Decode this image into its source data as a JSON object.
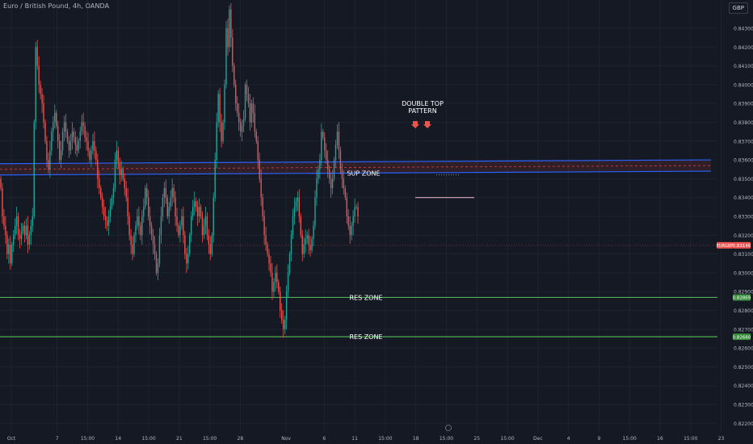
{
  "header": {
    "symbol_title": "Euro / British Pound, 4h, OANDA",
    "currency": "GBP"
  },
  "colors": {
    "background": "#151924",
    "grid": "#1f2330",
    "up": "#26a69a",
    "down": "#ef5350",
    "sup_band": "#2962ff",
    "res_line": "#4caf50",
    "text": "#b2b5be",
    "annotation": "#ffffff"
  },
  "chart_data": {
    "type": "candlestick",
    "ylim": [
      0.8215,
      0.8445
    ],
    "y_ticks": [
      "0.84300",
      "0.84200",
      "0.84100",
      "0.84000",
      "0.83900",
      "0.83800",
      "0.83700",
      "0.83600",
      "0.83500",
      "0.83400",
      "0.83300",
      "0.83200",
      "0.83100",
      "0.83000",
      "0.82900",
      "0.82800",
      "0.82700",
      "0.82600",
      "0.82500",
      "0.82400",
      "0.82300",
      "0.82200"
    ],
    "x_ticks": [
      "Oct",
      "7",
      "15:00",
      "14",
      "15:00",
      "21",
      "15:00",
      "28",
      "Nov",
      "6",
      "11",
      "15:00",
      "18",
      "15:00",
      "25",
      "15:00",
      "Dec",
      "4",
      "9",
      "15:00",
      "16",
      "15:00",
      "23"
    ],
    "x_tick_positions_bars": [
      0,
      30,
      50,
      70,
      90,
      110,
      130,
      150,
      180,
      205,
      225,
      245,
      265,
      285,
      305,
      325,
      345,
      365,
      385,
      405,
      425,
      445,
      465
    ],
    "total_bars": 470,
    "price_series_close": [
      0.8345,
      0.833,
      0.8325,
      0.832,
      0.831,
      0.8315,
      0.8305,
      0.8315,
      0.832,
      0.8325,
      0.833,
      0.832,
      0.8318,
      0.8322,
      0.8325,
      0.832,
      0.8325,
      0.8315,
      0.832,
      0.8325,
      0.833,
      0.838,
      0.842,
      0.841,
      0.84,
      0.8395,
      0.839,
      0.838,
      0.837,
      0.836,
      0.8355,
      0.8365,
      0.8375,
      0.838,
      0.8385,
      0.8378,
      0.837,
      0.836,
      0.8365,
      0.8375,
      0.838,
      0.8375,
      0.837,
      0.8365,
      0.837,
      0.8375,
      0.8372,
      0.8368,
      0.8365,
      0.837,
      0.8375,
      0.838,
      0.8378,
      0.8372,
      0.837,
      0.8365,
      0.836,
      0.8365,
      0.837,
      0.8365,
      0.836,
      0.835,
      0.8345,
      0.834,
      0.8335,
      0.833,
      0.8328,
      0.8325,
      0.833,
      0.8335,
      0.834,
      0.8345,
      0.836,
      0.8365,
      0.8358,
      0.8352,
      0.8355,
      0.835,
      0.8345,
      0.834,
      0.833,
      0.832,
      0.8315,
      0.831,
      0.832,
      0.8325,
      0.833,
      0.8325,
      0.832,
      0.833,
      0.8335,
      0.8345,
      0.834,
      0.833,
      0.8325,
      0.832,
      0.8315,
      0.831,
      0.83,
      0.8305,
      0.832,
      0.833,
      0.834,
      0.8345,
      0.834,
      0.833,
      0.8335,
      0.834,
      0.8345,
      0.834,
      0.833,
      0.8325,
      0.832,
      0.8325,
      0.833,
      0.832,
      0.831,
      0.8305,
      0.831,
      0.832,
      0.833,
      0.8335,
      0.8338,
      0.8335,
      0.833,
      0.8335,
      0.833,
      0.832,
      0.8325,
      0.833,
      0.832,
      0.8315,
      0.831,
      0.832,
      0.834,
      0.836,
      0.838,
      0.8395,
      0.838,
      0.837,
      0.838,
      0.84,
      0.843,
      0.842,
      0.844,
      0.8425,
      0.841,
      0.84,
      0.839,
      0.8385,
      0.838,
      0.8375,
      0.8378,
      0.8382,
      0.84,
      0.8395,
      0.839,
      0.838,
      0.839,
      0.8385,
      0.8375,
      0.837,
      0.836,
      0.835,
      0.834,
      0.833,
      0.832,
      0.8315,
      0.831,
      0.8305,
      0.83,
      0.829,
      0.8295,
      0.83,
      0.8295,
      0.829,
      0.828,
      0.8275,
      0.827,
      0.8275,
      0.829,
      0.83,
      0.831,
      0.832,
      0.833,
      0.8335,
      0.8338,
      0.834,
      0.833,
      0.832,
      0.831,
      0.8315,
      0.8318,
      0.832,
      0.8315,
      0.8312,
      0.8318,
      0.8325,
      0.834,
      0.835,
      0.8355,
      0.836,
      0.8375,
      0.8372,
      0.8365,
      0.836,
      0.8355,
      0.835,
      0.8345,
      0.835,
      0.836,
      0.8368,
      0.8375,
      0.8365,
      0.8355,
      0.835,
      0.8345,
      0.834,
      0.833,
      0.8325,
      0.832,
      0.8325,
      0.833,
      0.8335,
      0.8335,
      0.833
    ],
    "price_series_bars_span": [
      0,
      235
    ],
    "current_price": "0.83146",
    "current_price_label": "EURGBP",
    "annotations": {
      "pattern_label_line1": "DOUBLE TOP",
      "pattern_label_line2": "PATTERN",
      "sup_zone": "SUP ZONE",
      "res_zone_1": "RES ZONE",
      "res_zone_2": "RES ZONE",
      "res_level_1": "0.82869",
      "res_level_2": "0.82660",
      "sup_band_top_left": 0.8358,
      "sup_band_bottom_left": 0.8352,
      "sup_band_top_right": 0.836,
      "sup_band_bottom_right": 0.8354,
      "horizontal_ray_price": 0.834
    }
  }
}
